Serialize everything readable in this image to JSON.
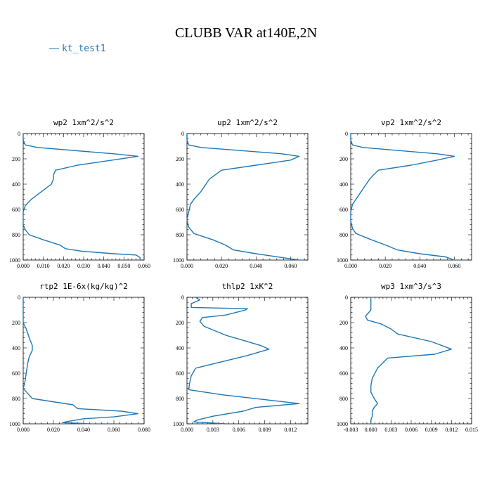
{
  "title": "CLUBB VAR at140E,2N",
  "legend": {
    "label": "kt_test1",
    "color": "#1f77b4"
  },
  "chart_data": [
    {
      "type": "line",
      "title": "wp2   1xm^2/s^2",
      "xlim": [
        0,
        0.06
      ],
      "ylim": [
        1000,
        0
      ],
      "xticks": [
        "0.000",
        "0.010",
        "0.020",
        "0.030",
        "0.040",
        "0.050",
        "0.060"
      ],
      "xtick_values": [
        0,
        0.01,
        0.02,
        0.03,
        0.04,
        0.05,
        0.06
      ],
      "yticks": [
        "0",
        "200",
        "400",
        "600",
        "800",
        "1000"
      ],
      "series": [
        {
          "values": [
            [
              0,
              0
            ],
            [
              0,
              50
            ],
            [
              0.001,
              90
            ],
            [
              0.007,
              110
            ],
            [
              0.045,
              160
            ],
            [
              0.057,
              180
            ],
            [
              0.04,
              220
            ],
            [
              0.027,
              250
            ],
            [
              0.016,
              290
            ],
            [
              0.015,
              330
            ],
            [
              0.015,
              360
            ],
            [
              0.014,
              400
            ],
            [
              0.009,
              460
            ],
            [
              0.004,
              520
            ],
            [
              0.001,
              570
            ],
            [
              0,
              620
            ],
            [
              0,
              680
            ],
            [
              0,
              720
            ],
            [
              0.001,
              760
            ],
            [
              0.003,
              800
            ],
            [
              0.01,
              840
            ],
            [
              0.018,
              880
            ],
            [
              0.021,
              910
            ],
            [
              0.029,
              930
            ],
            [
              0.045,
              950
            ],
            [
              0.056,
              960
            ],
            [
              0.058,
              980
            ],
            [
              0.058,
              1000
            ]
          ]
        }
      ]
    },
    {
      "type": "line",
      "title": "up2   1xm^2/s^2",
      "xlim": [
        0,
        0.07
      ],
      "ylim": [
        1000,
        0
      ],
      "xticks": [
        "0.000",
        "0.020",
        "0.040",
        "0.060"
      ],
      "xtick_values": [
        0,
        0.02,
        0.04,
        0.06
      ],
      "yticks": [
        "0",
        "200",
        "400",
        "600",
        "800",
        "1000"
      ],
      "series": [
        {
          "values": [
            [
              0,
              0
            ],
            [
              0,
              50
            ],
            [
              0.001,
              90
            ],
            [
              0.008,
              110
            ],
            [
              0.055,
              160
            ],
            [
              0.065,
              180
            ],
            [
              0.06,
              210
            ],
            [
              0.04,
              250
            ],
            [
              0.02,
              290
            ],
            [
              0.016,
              330
            ],
            [
              0.013,
              360
            ],
            [
              0.011,
              400
            ],
            [
              0.008,
              460
            ],
            [
              0.004,
              520
            ],
            [
              0.002,
              560
            ],
            [
              0.001,
              620
            ],
            [
              0,
              680
            ],
            [
              0.001,
              740
            ],
            [
              0.004,
              790
            ],
            [
              0.015,
              840
            ],
            [
              0.022,
              880
            ],
            [
              0.027,
              920
            ],
            [
              0.04,
              950
            ],
            [
              0.05,
              970
            ],
            [
              0.055,
              980
            ],
            [
              0.065,
              1000
            ]
          ]
        }
      ]
    },
    {
      "type": "line",
      "title": "vp2   1xm^2/s^2",
      "xlim": [
        0,
        0.07
      ],
      "ylim": [
        1000,
        0
      ],
      "xticks": [
        "0.000",
        "0.020",
        "0.040",
        "0.060"
      ],
      "xtick_values": [
        0,
        0.02,
        0.04,
        0.06
      ],
      "yticks": [
        "0",
        "200",
        "400",
        "600",
        "800",
        "1000"
      ],
      "series": [
        {
          "values": [
            [
              0,
              0
            ],
            [
              0,
              50
            ],
            [
              0.001,
              90
            ],
            [
              0.007,
              110
            ],
            [
              0.05,
              160
            ],
            [
              0.06,
              180
            ],
            [
              0.05,
              210
            ],
            [
              0.035,
              250
            ],
            [
              0.016,
              290
            ],
            [
              0.013,
              330
            ],
            [
              0.011,
              360
            ],
            [
              0.009,
              400
            ],
            [
              0.006,
              460
            ],
            [
              0.003,
              520
            ],
            [
              0.001,
              560
            ],
            [
              0,
              620
            ],
            [
              0,
              690
            ],
            [
              0.001,
              750
            ],
            [
              0.003,
              790
            ],
            [
              0.012,
              840
            ],
            [
              0.02,
              880
            ],
            [
              0.027,
              920
            ],
            [
              0.04,
              950
            ],
            [
              0.055,
              975
            ],
            [
              0.06,
              1000
            ]
          ]
        }
      ]
    },
    {
      "type": "line",
      "title": "rtp2   1E-6x(kg/kg)^2",
      "xlim": [
        0,
        0.08
      ],
      "ylim": [
        1000,
        0
      ],
      "xticks": [
        "0.000",
        "0.020",
        "0.040",
        "0.060",
        "0.080"
      ],
      "xtick_values": [
        0,
        0.02,
        0.04,
        0.06,
        0.08
      ],
      "yticks": [
        "0",
        "200",
        "400",
        "600",
        "800",
        "1000"
      ],
      "series": [
        {
          "values": [
            [
              0,
              0
            ],
            [
              0,
              100
            ],
            [
              0,
              200
            ],
            [
              0.002,
              250
            ],
            [
              0.004,
              320
            ],
            [
              0.006,
              380
            ],
            [
              0.006,
              420
            ],
            [
              0.004,
              470
            ],
            [
              0.003,
              520
            ],
            [
              0.002,
              600
            ],
            [
              0.001,
              680
            ],
            [
              0,
              720
            ],
            [
              0.003,
              760
            ],
            [
              0.006,
              800
            ],
            [
              0.033,
              850
            ],
            [
              0.036,
              880
            ],
            [
              0.065,
              900
            ],
            [
              0.076,
              920
            ],
            [
              0.06,
              945
            ],
            [
              0.04,
              960
            ],
            [
              0.03,
              980
            ],
            [
              0.026,
              990
            ],
            [
              0.045,
              1000
            ]
          ]
        }
      ]
    },
    {
      "type": "line",
      "title": "thlp2   1xK^2",
      "xlim": [
        0,
        0.014
      ],
      "ylim": [
        1000,
        0
      ],
      "xticks": [
        "0.000",
        "0.003",
        "0.006",
        "0.009",
        "0.012"
      ],
      "xtick_values": [
        0,
        0.003,
        0.006,
        0.009,
        0.012
      ],
      "yticks": [
        "0",
        "200",
        "400",
        "600",
        "800",
        "1000"
      ],
      "series": [
        {
          "values": [
            [
              0.001,
              0
            ],
            [
              0.0015,
              20
            ],
            [
              0.0005,
              50
            ],
            [
              0.0005,
              80
            ],
            [
              0.007,
              90
            ],
            [
              0.0068,
              100
            ],
            [
              0.0045,
              140
            ],
            [
              0.0018,
              160
            ],
            [
              0.0015,
              190
            ],
            [
              0.002,
              230
            ],
            [
              0.0045,
              300
            ],
            [
              0.0065,
              340
            ],
            [
              0.0085,
              380
            ],
            [
              0.0095,
              410
            ],
            [
              0.007,
              460
            ],
            [
              0.004,
              510
            ],
            [
              0.001,
              560
            ],
            [
              0.0005,
              620
            ],
            [
              0.0003,
              680
            ],
            [
              0.0002,
              730
            ],
            [
              0.004,
              770
            ],
            [
              0.013,
              840
            ],
            [
              0.008,
              870
            ],
            [
              0.0065,
              900
            ],
            [
              0.003,
              940
            ],
            [
              0.0012,
              970
            ],
            [
              0.0008,
              985
            ],
            [
              0.0045,
              1000
            ]
          ]
        }
      ]
    },
    {
      "type": "line",
      "title": "wp3   1xm^3/s^3",
      "xlim": [
        -0.003,
        0.015
      ],
      "ylim": [
        1000,
        0
      ],
      "xticks": [
        "-0.003",
        "0.000",
        "0.003",
        "0.006",
        "0.009",
        "0.012",
        "0.015"
      ],
      "xtick_values": [
        -0.003,
        0,
        0.003,
        0.006,
        0.009,
        0.012,
        0.015
      ],
      "yticks": [
        "0",
        "200",
        "400",
        "600",
        "800",
        "1000"
      ],
      "series": [
        {
          "values": [
            [
              0,
              0
            ],
            [
              0,
              50
            ],
            [
              0,
              100
            ],
            [
              -0.0008,
              150
            ],
            [
              -0.0005,
              180
            ],
            [
              0.0015,
              210
            ],
            [
              0.003,
              250
            ],
            [
              0.004,
              290
            ],
            [
              0.009,
              350
            ],
            [
              0.012,
              410
            ],
            [
              0.0095,
              450
            ],
            [
              0.0025,
              480
            ],
            [
              0.001,
              560
            ],
            [
              0.0002,
              640
            ],
            [
              0,
              700
            ],
            [
              0,
              750
            ],
            [
              0.0005,
              800
            ],
            [
              0.001,
              840
            ],
            [
              0.0005,
              870
            ],
            [
              0.0002,
              900
            ],
            [
              0.0002,
              940
            ],
            [
              0,
              970
            ],
            [
              0,
              1000
            ]
          ]
        }
      ]
    }
  ]
}
